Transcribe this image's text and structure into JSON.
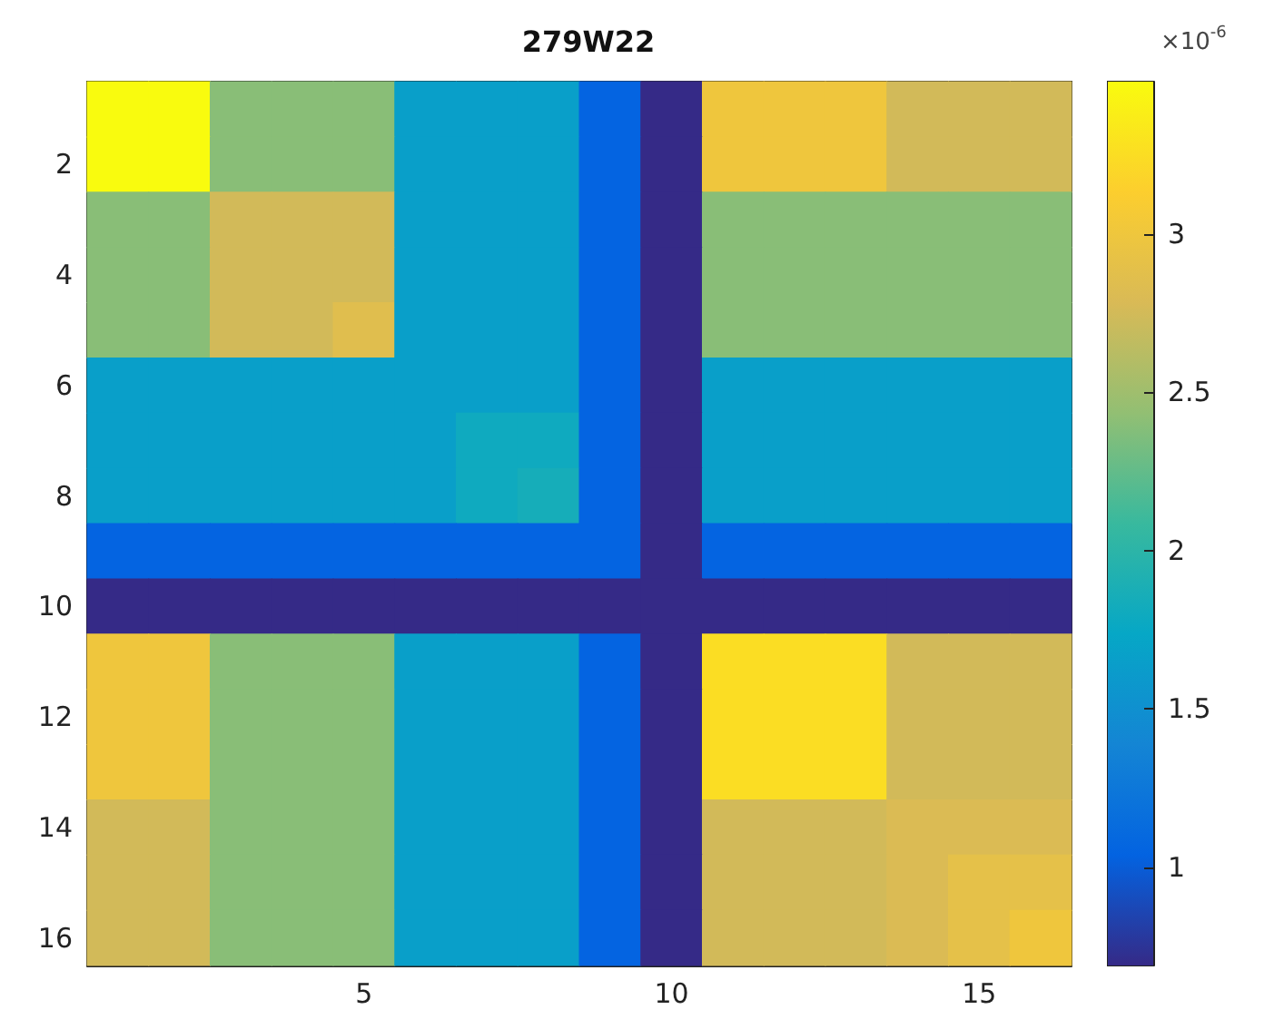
{
  "chart_data": {
    "type": "heatmap",
    "title": "279W22",
    "clabel": "×10$^{-6}$",
    "categories": [
      null,
      null,
      null,
      null,
      "5",
      null,
      null,
      null,
      null,
      "10",
      null,
      null,
      null,
      null,
      "15",
      null
    ],
    "y_categories": [
      null,
      "2",
      null,
      "4",
      null,
      "6",
      null,
      "8",
      null,
      "10",
      null,
      "12",
      null,
      "14",
      null,
      "16"
    ],
    "clim": [
      0.69,
      3.48
    ],
    "cticks": [
      1,
      1.5,
      2,
      2.5,
      3
    ],
    "cells": [
      [
        3.48,
        3.48,
        2.4,
        2.4,
        2.4,
        1.65,
        1.65,
        1.65,
        1.05,
        0.69,
        3.0,
        3.0,
        3.0,
        2.75,
        2.75,
        2.75
      ],
      [
        3.48,
        3.48,
        2.4,
        2.4,
        2.4,
        1.65,
        1.65,
        1.65,
        1.05,
        0.69,
        3.0,
        3.0,
        3.0,
        2.75,
        2.75,
        2.75
      ],
      [
        2.4,
        2.4,
        2.75,
        2.75,
        2.75,
        1.65,
        1.65,
        1.65,
        1.05,
        0.69,
        2.4,
        2.4,
        2.4,
        2.4,
        2.4,
        2.4
      ],
      [
        2.4,
        2.4,
        2.75,
        2.75,
        2.75,
        1.65,
        1.65,
        1.65,
        1.05,
        0.69,
        2.4,
        2.4,
        2.4,
        2.4,
        2.4,
        2.4
      ],
      [
        2.4,
        2.4,
        2.75,
        2.75,
        2.85,
        1.65,
        1.65,
        1.65,
        1.05,
        0.69,
        2.4,
        2.4,
        2.4,
        2.4,
        2.4,
        2.4
      ],
      [
        1.65,
        1.65,
        1.65,
        1.65,
        1.65,
        1.65,
        1.65,
        1.65,
        1.05,
        0.69,
        1.65,
        1.65,
        1.65,
        1.65,
        1.65,
        1.65
      ],
      [
        1.65,
        1.65,
        1.65,
        1.65,
        1.65,
        1.65,
        1.8,
        1.8,
        1.05,
        0.69,
        1.65,
        1.65,
        1.65,
        1.65,
        1.65,
        1.65
      ],
      [
        1.65,
        1.65,
        1.65,
        1.65,
        1.65,
        1.65,
        1.8,
        1.85,
        1.05,
        0.69,
        1.65,
        1.65,
        1.65,
        1.65,
        1.65,
        1.65
      ],
      [
        1.05,
        1.05,
        1.05,
        1.05,
        1.05,
        1.05,
        1.05,
        1.05,
        1.05,
        0.69,
        1.05,
        1.05,
        1.05,
        1.05,
        1.05,
        1.05
      ],
      [
        0.69,
        0.69,
        0.69,
        0.69,
        0.69,
        0.69,
        0.69,
        0.69,
        0.69,
        0.69,
        0.69,
        0.69,
        0.69,
        0.69,
        0.69,
        0.69
      ],
      [
        3.0,
        3.0,
        2.4,
        2.4,
        2.4,
        1.65,
        1.65,
        1.65,
        1.05,
        0.69,
        3.25,
        3.25,
        3.25,
        2.75,
        2.75,
        2.75
      ],
      [
        3.0,
        3.0,
        2.4,
        2.4,
        2.4,
        1.65,
        1.65,
        1.65,
        1.05,
        0.69,
        3.25,
        3.25,
        3.25,
        2.75,
        2.75,
        2.75
      ],
      [
        3.0,
        3.0,
        2.4,
        2.4,
        2.4,
        1.65,
        1.65,
        1.65,
        1.05,
        0.69,
        3.25,
        3.25,
        3.25,
        2.75,
        2.75,
        2.75
      ],
      [
        2.75,
        2.75,
        2.4,
        2.4,
        2.4,
        1.65,
        1.65,
        1.65,
        1.05,
        0.69,
        2.75,
        2.75,
        2.75,
        2.8,
        2.8,
        2.8
      ],
      [
        2.75,
        2.75,
        2.4,
        2.4,
        2.4,
        1.65,
        1.65,
        1.65,
        1.05,
        0.69,
        2.75,
        2.75,
        2.75,
        2.8,
        2.9,
        2.9
      ],
      [
        2.75,
        2.75,
        2.4,
        2.4,
        2.4,
        1.65,
        1.65,
        1.65,
        1.05,
        0.69,
        2.75,
        2.75,
        2.75,
        2.8,
        2.9,
        3.0
      ]
    ]
  }
}
